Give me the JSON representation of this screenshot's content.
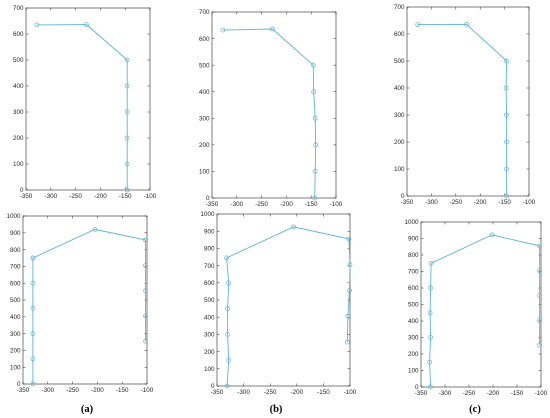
{
  "colors": {
    "line": "#5bb5da",
    "axis": "#262626"
  },
  "chart_data": [
    {
      "type": "line",
      "xlim": [
        -350,
        -100
      ],
      "ylim": [
        0,
        700
      ],
      "xticks": [
        -350,
        -300,
        -250,
        -200,
        -150,
        -100
      ],
      "yticks": [
        0,
        100,
        200,
        300,
        400,
        500,
        600,
        700
      ],
      "x": [
        -328,
        -228,
        -146,
        -146,
        -146,
        -146,
        -146,
        -146,
        -146
      ],
      "y": [
        635,
        636,
        500,
        400,
        300,
        200,
        100,
        0,
        0
      ],
      "markers": true,
      "grid": false,
      "title": "",
      "xlabel": "",
      "ylabel": ""
    },
    {
      "type": "line",
      "xlim": [
        -350,
        -100
      ],
      "ylim": [
        0,
        700
      ],
      "xticks": [
        -350,
        -300,
        -250,
        -200,
        -150,
        -100
      ],
      "yticks": [
        0,
        100,
        200,
        300,
        400,
        500,
        600,
        700
      ],
      "x": [
        -328,
        -228,
        -146,
        -145,
        -142,
        -141,
        -142,
        -143
      ],
      "y": [
        632,
        636,
        500,
        400,
        300,
        200,
        100,
        0
      ],
      "markers": true,
      "grid": false,
      "title": "",
      "xlabel": "",
      "ylabel": ""
    },
    {
      "type": "line",
      "xlim": [
        -350,
        -100
      ],
      "ylim": [
        0,
        700
      ],
      "xticks": [
        -350,
        -300,
        -250,
        -200,
        -150,
        -100
      ],
      "yticks": [
        0,
        100,
        200,
        300,
        400,
        500,
        600,
        700
      ],
      "x": [
        -328,
        -228,
        -146,
        -147,
        -146,
        -146,
        -146,
        -146
      ],
      "y": [
        635,
        636,
        500,
        400,
        300,
        200,
        100,
        0
      ],
      "markers": true,
      "grid": false,
      "title": "",
      "xlabel": "",
      "ylabel": ""
    },
    {
      "type": "line",
      "xlim": [
        -350,
        -100
      ],
      "ylim": [
        0,
        1000
      ],
      "xticks": [
        -350,
        -300,
        -250,
        -200,
        -150,
        -100
      ],
      "yticks": [
        0,
        100,
        200,
        300,
        400,
        500,
        600,
        700,
        800,
        900,
        1000
      ],
      "x": [
        -330,
        -330,
        -330,
        -330,
        -330,
        -330,
        -330,
        -205,
        -103,
        -103,
        -103,
        -103,
        -103,
        -103
      ],
      "y": [
        0,
        150,
        300,
        450,
        600,
        750,
        750,
        920,
        858,
        858,
        705,
        555,
        405,
        255
      ],
      "markers": true,
      "grid": false,
      "title": "",
      "xlabel": "",
      "ylabel": ""
    },
    {
      "type": "line",
      "xlim": [
        -350,
        -100
      ],
      "ylim": [
        0,
        1000
      ],
      "xticks": [
        -350,
        -300,
        -250,
        -200,
        -150,
        -100
      ],
      "yticks": [
        0,
        100,
        200,
        300,
        400,
        500,
        600,
        700,
        800,
        900,
        1000
      ],
      "x": [
        -331,
        -328,
        -330,
        -330,
        -328,
        -332,
        -206,
        -102,
        -100,
        -101,
        -104,
        -105
      ],
      "y": [
        0,
        150,
        300,
        450,
        600,
        745,
        925,
        855,
        705,
        555,
        405,
        255
      ],
      "markers": true,
      "grid": false,
      "title": "",
      "xlabel": "",
      "ylabel": ""
    },
    {
      "type": "line",
      "xlim": [
        -350,
        -100
      ],
      "ylim": [
        0,
        1000
      ],
      "xticks": [
        -350,
        -300,
        -250,
        -200,
        -150,
        -100
      ],
      "yticks": [
        0,
        100,
        200,
        300,
        400,
        500,
        600,
        700,
        800,
        900,
        1000
      ],
      "x": [
        -330,
        -332,
        -330,
        -331,
        -330,
        -329,
        -202,
        -103,
        -103,
        -103,
        -103,
        -103
      ],
      "y": [
        0,
        150,
        300,
        450,
        600,
        750,
        922,
        855,
        705,
        555,
        405,
        255
      ],
      "markers": true,
      "grid": false,
      "title": "",
      "xlabel": "",
      "ylabel": ""
    }
  ],
  "labels": {
    "a": "(a)",
    "b": "(b)",
    "c": "(c)"
  }
}
